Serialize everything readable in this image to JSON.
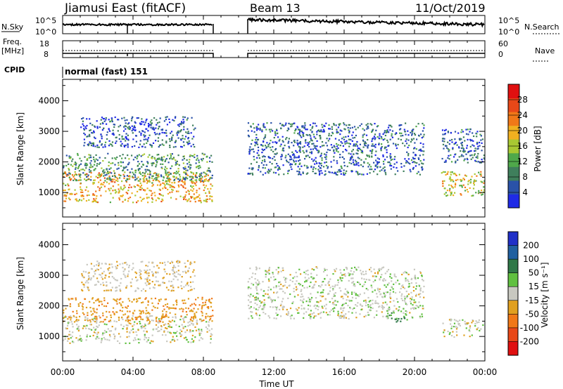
{
  "header": {
    "station": "Jiamusi East (fitACF)",
    "beam": "Beam 13",
    "date": "11/Oct/2019",
    "cpid_label": "CPID",
    "cpid_value": "normal (fast) 151"
  },
  "nsky_panel": {
    "left_label": "N.Sky",
    "left_ticks": [
      "10^5",
      "10^0"
    ],
    "right_ticks": [
      "10^5",
      "10^0"
    ],
    "right_label": "N.Search",
    "gap_hours": [
      8.5,
      10.5
    ]
  },
  "freq_panel": {
    "left_label_1": "Freq.",
    "left_label_2": "[MHz]",
    "left_ticks": [
      "18",
      "8"
    ],
    "right_ticks": [
      "60",
      "0"
    ],
    "right_label": "Nave"
  },
  "colors": {
    "power_scale": [
      "#1f2ae6",
      "#2a52a8",
      "#3f7f5c",
      "#4fa84a",
      "#a8c832",
      "#f0b020",
      "#f07818",
      "#e84818",
      "#e01010"
    ],
    "velocity_scale": [
      "#2030c8",
      "#2060a0",
      "#307848",
      "#60c040",
      "#c8c8c0",
      "#e0a020",
      "#f07818",
      "#e84818",
      "#e01010"
    ]
  },
  "chart_data": [
    {
      "type": "heatmap",
      "name": "power",
      "xlabel": "",
      "ylabel": "Slant Range [km]",
      "x_ticks_hours": [
        0,
        4,
        8,
        12,
        16,
        20,
        24
      ],
      "y_ticks": [
        "1000",
        "2000",
        "3000",
        "4000"
      ],
      "ylim": [
        200,
        4700
      ],
      "colorbar_label": "Power [dB]",
      "colorbar_ticks": [
        "4",
        "8",
        "12",
        "16",
        "20",
        "24",
        "28"
      ],
      "colorbar_range": [
        0,
        32
      ],
      "echo_regions": [
        {
          "t0": 0.0,
          "t1": 8.5,
          "r0": 700,
          "r1": 1700,
          "level": 20
        },
        {
          "t0": 0.0,
          "t1": 8.5,
          "r0": 1400,
          "r1": 2300,
          "level": 10
        },
        {
          "t0": 1.0,
          "t1": 7.5,
          "r0": 2500,
          "r1": 3500,
          "level": 5
        },
        {
          "t0": 10.5,
          "t1": 20.5,
          "r0": 1600,
          "r1": 3300,
          "level": 6
        },
        {
          "t0": 21.5,
          "t1": 24.0,
          "r0": 900,
          "r1": 1700,
          "level": 18
        },
        {
          "t0": 21.5,
          "t1": 24.0,
          "r0": 2000,
          "r1": 3100,
          "level": 6
        }
      ]
    },
    {
      "type": "heatmap",
      "name": "velocity",
      "xlabel": "Time UT",
      "ylabel": "Slant Range [km]",
      "x_tick_labels": [
        "00:00",
        "04:00",
        "08:00",
        "12:00",
        "16:00",
        "20:00",
        "00:00"
      ],
      "y_ticks": [
        "1000",
        "2000",
        "3000",
        "4000"
      ],
      "ylim": [
        200,
        4700
      ],
      "colorbar_label": "Velocity [m s⁻¹]",
      "colorbar_ticks": [
        "200",
        "100",
        "50",
        "15",
        "-15",
        "-50",
        "-100",
        "-200"
      ],
      "echo_regions": [
        {
          "t0": 0.0,
          "t1": 8.5,
          "r0": 800,
          "r1": 1700,
          "velocity": 0
        },
        {
          "t0": 0.0,
          "t1": 8.5,
          "r0": 1500,
          "r1": 2300,
          "velocity": -40
        },
        {
          "t0": 1.0,
          "t1": 7.5,
          "r0": 2500,
          "r1": 3500,
          "velocity": -10
        },
        {
          "t0": 10.5,
          "t1": 20.5,
          "r0": 1600,
          "r1": 3300,
          "velocity": 5
        },
        {
          "t0": 18.2,
          "t1": 19.6,
          "r0": 1500,
          "r1": 1800,
          "velocity": 40
        },
        {
          "t0": 21.5,
          "t1": 24.0,
          "r0": 1000,
          "r1": 1600,
          "velocity": 0
        }
      ]
    }
  ]
}
